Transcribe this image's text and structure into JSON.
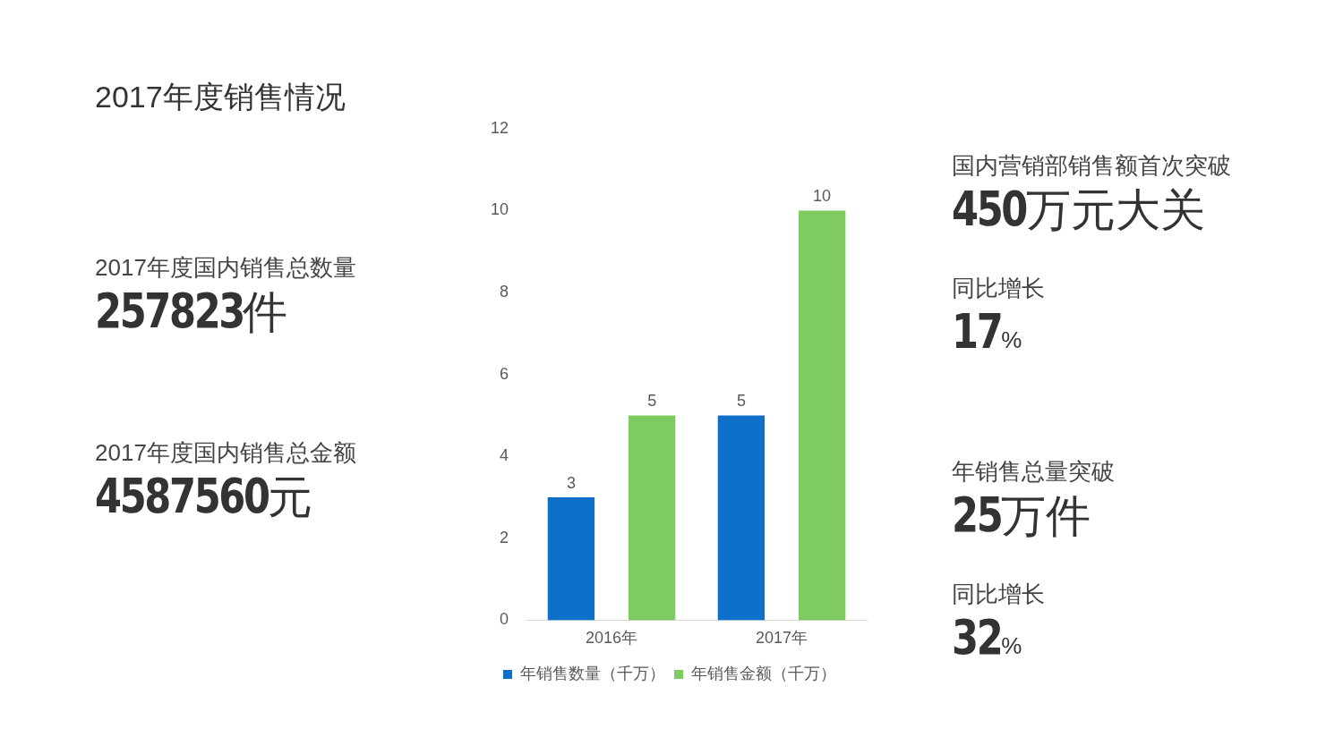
{
  "chart_data": [
    {
      "type": "other",
      "title": "2017年度销售情况",
      "annotations": [
        "2017年度国内销售总数量",
        "257823件",
        "2017年度国内销售总金额",
        "4587560元"
      ]
    },
    {
      "type": "bar",
      "categories": [
        "2016年",
        "2017年"
      ],
      "series": [
        {
          "name": "年销售数量（千万）",
          "color": "#0e70c8",
          "values": [
            3,
            5
          ]
        },
        {
          "name": "年销售金额（千万）",
          "color": "#7ecb61",
          "values": [
            5,
            10
          ]
        }
      ],
      "ylim": [
        0,
        12
      ],
      "yticks": [
        0,
        2,
        4,
        6,
        8,
        10,
        12
      ],
      "grid": false,
      "legend": "bottom",
      "data_labels": true
    },
    {
      "type": "other",
      "annotations": [
        "国内营销部销售额首次突破",
        "450万元大关",
        "同比增长",
        "17%",
        "年销售总量突破",
        "25万件",
        "同比增长",
        "32%"
      ]
    }
  ]
}
